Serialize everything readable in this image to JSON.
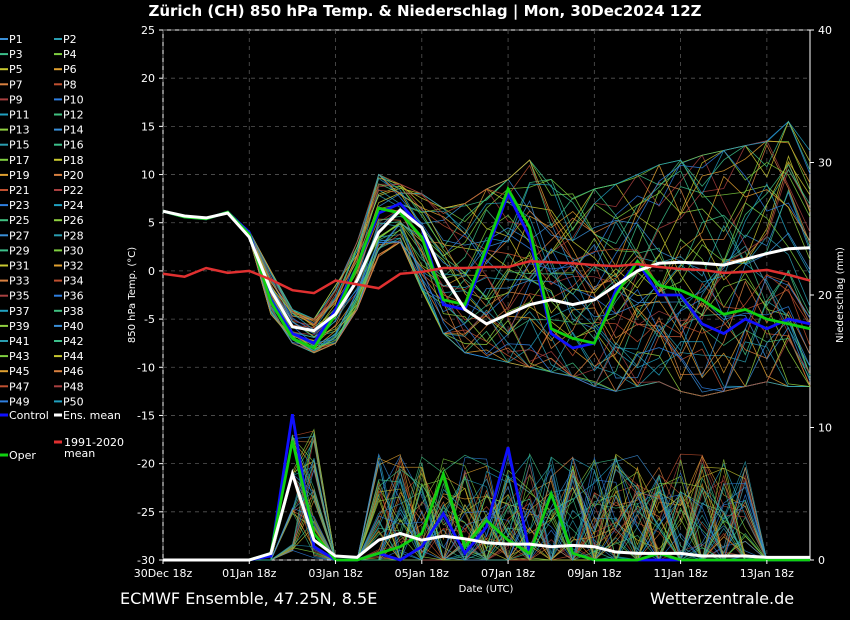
{
  "title": "Zürich  (CH)  850 hPa Temp. & Niederschlag | Mon, 30Dec2024 12Z",
  "footer": {
    "left": "ECMWF Ensemble, 47.25N, 8.5E",
    "right": "Wetterzentrale.de"
  },
  "colors": {
    "background": "#000000",
    "control": "#1010ff",
    "ens_mean": "#ffffff",
    "climate": "#e03030",
    "oper": "#10d010",
    "palette": [
      "#3a8fd8",
      "#2a9db0",
      "#3cbf8a",
      "#7fcf40",
      "#c8c830",
      "#e0a030",
      "#d88040",
      "#c05030",
      "#a84040",
      "#2f7fe0",
      "#20a0c0",
      "#40c080",
      "#90d040"
    ]
  },
  "chart_data": {
    "type": "line",
    "title": "Zürich  (CH)  850 hPa Temp. & Niederschlag | Mon, 30Dec2024 12Z",
    "xlabel": "Date (UTC)",
    "ylabel_left": "850 hPa Temp. (°C)",
    "ylabel_right": "Niederschlag (mm)",
    "ylim_left": [
      -30,
      25
    ],
    "ylim_right": [
      0,
      40
    ],
    "xlim_days": [
      0,
      15
    ],
    "yticks_left": [
      25,
      20,
      15,
      10,
      5,
      0,
      -5,
      -10,
      -15,
      -20,
      -25,
      -30
    ],
    "yticks_right": [
      40,
      30,
      20,
      10,
      0
    ],
    "xticks": [
      {
        "day": 0,
        "label": "30Dec 18z"
      },
      {
        "day": 2,
        "label": "01Jan 18z"
      },
      {
        "day": 4,
        "label": "03Jan 18z"
      },
      {
        "day": 6,
        "label": "05Jan 18z"
      },
      {
        "day": 8,
        "label": "07Jan 18z"
      },
      {
        "day": 10,
        "label": "09Jan 18z"
      },
      {
        "day": 12,
        "label": "11Jan 18z"
      },
      {
        "day": 14,
        "label": "13Jan 18z"
      }
    ],
    "grid": true,
    "legend_position": "left",
    "x_days": [
      0,
      0.5,
      1,
      1.5,
      2,
      2.5,
      3,
      3.5,
      4,
      4.5,
      5,
      5.5,
      6,
      6.5,
      7,
      7.5,
      8,
      8.5,
      9,
      9.5,
      10,
      10.5,
      11,
      11.5,
      12,
      12.5,
      13,
      13.5,
      14,
      14.5,
      15
    ],
    "series": [
      {
        "name": "Control",
        "color": "#1010ff",
        "temp": [
          6.2,
          5.6,
          5.4,
          6.1,
          4.0,
          -3.0,
          -6.5,
          -7.5,
          -4.0,
          0.5,
          6.0,
          7.0,
          4.5,
          -3.5,
          -4.0,
          2.0,
          8.0,
          3.5,
          -6.5,
          -8.0,
          -7.5,
          -2.0,
          1.0,
          -2.5,
          -2.5,
          -5.5,
          -6.5,
          -5.0,
          -6.0,
          -5.0,
          -5.5
        ],
        "precip": [
          0,
          0,
          0,
          0,
          0,
          0.3,
          11,
          1.0,
          0,
          0,
          0.5,
          0,
          1.0,
          3.5,
          0.5,
          2.5,
          8.5,
          0.5,
          5.0,
          0.5,
          0,
          0,
          0,
          0,
          0,
          0,
          0,
          0,
          0,
          0,
          0
        ]
      },
      {
        "name": "Oper",
        "color": "#10d010",
        "temp": [
          6.2,
          5.6,
          5.4,
          6.1,
          3.8,
          -3.2,
          -7.0,
          -8.0,
          -4.5,
          0.5,
          6.5,
          6.0,
          3.5,
          -3.0,
          -3.5,
          2.5,
          8.5,
          4.5,
          -6.0,
          -7.0,
          -7.5,
          -2.5,
          1.0,
          -1.5,
          -2.0,
          -3.0,
          -4.5,
          -4.0,
          -5.0,
          -5.5,
          -6.0
        ],
        "precip": [
          0,
          0,
          0,
          0,
          0,
          0.5,
          9.0,
          2.0,
          0,
          0,
          0.5,
          1.0,
          2.0,
          6.5,
          1.0,
          3.0,
          1.5,
          0.5,
          5.0,
          0.5,
          0,
          0,
          0,
          0.5,
          0,
          0,
          0,
          0,
          0,
          0,
          0
        ]
      },
      {
        "name": "Ens. mean",
        "color": "#ffffff",
        "temp": [
          6.2,
          5.7,
          5.5,
          6.0,
          3.5,
          -2.0,
          -5.8,
          -6.2,
          -4.5,
          -1.0,
          4.0,
          6.3,
          4.5,
          -0.5,
          -4.0,
          -5.5,
          -4.5,
          -3.5,
          -3.0,
          -3.5,
          -3.0,
          -1.5,
          0.0,
          0.8,
          0.9,
          0.8,
          0.6,
          1.2,
          1.8,
          2.3,
          2.4
        ],
        "precip": [
          0,
          0,
          0,
          0,
          0,
          0.5,
          6.5,
          1.5,
          0.3,
          0.2,
          1.5,
          2.0,
          1.5,
          1.8,
          1.6,
          1.3,
          1.2,
          1.2,
          1.0,
          1.1,
          1.0,
          0.6,
          0.5,
          0.5,
          0.5,
          0.3,
          0.3,
          0.3,
          0.2,
          0.2,
          0.2
        ]
      },
      {
        "name": "1991-2020 mean",
        "color": "#e03030",
        "temp": [
          -0.3,
          -0.6,
          0.3,
          -0.2,
          0.0,
          -0.9,
          -2.0,
          -2.3,
          -1.0,
          -1.4,
          -1.8,
          -0.3,
          -0.1,
          0.3,
          0.3,
          0.4,
          0.4,
          1.0,
          0.9,
          0.8,
          0.6,
          0.5,
          0.7,
          0.4,
          0.2,
          0.1,
          -0.2,
          -0.1,
          0.1,
          -0.4,
          -1.0
        ],
        "precip": []
      }
    ],
    "members": [
      "P1",
      "P2",
      "P3",
      "P4",
      "P5",
      "P6",
      "P7",
      "P8",
      "P9",
      "P10",
      "P11",
      "P12",
      "P13",
      "P14",
      "P15",
      "P16",
      "P17",
      "P18",
      "P19",
      "P20",
      "P21",
      "P22",
      "P23",
      "P24",
      "P25",
      "P26",
      "P27",
      "P28",
      "P29",
      "P30",
      "P31",
      "P32",
      "P33",
      "P34",
      "P35",
      "P36",
      "P37",
      "P38",
      "P39",
      "P40",
      "P41",
      "P42",
      "P43",
      "P44",
      "P45",
      "P46",
      "P47",
      "P48",
      "P49",
      "P50"
    ],
    "member_temp_envelope": {
      "note_min": [
        6.0,
        5.4,
        5.2,
        5.8,
        2.5,
        -4.5,
        -7.5,
        -8.5,
        -7.5,
        -4.0,
        1.5,
        3.0,
        -2.0,
        -6.5,
        -8.5,
        -9.0,
        -9.5,
        -10.0,
        -10.5,
        -11.0,
        -12.0,
        -12.5,
        -12.0,
        -11.5,
        -12.5,
        -13.0,
        -12.5,
        -12.0,
        -11.5,
        -12.0,
        -12.0
      ],
      "note_max": [
        6.5,
        5.9,
        5.7,
        6.3,
        5.0,
        0.0,
        -4.0,
        -5.0,
        -1.5,
        3.0,
        10.0,
        9.0,
        8.0,
        6.5,
        7.0,
        8.5,
        9.5,
        11.5,
        9.5,
        8.0,
        8.5,
        9.0,
        10.0,
        11.0,
        11.5,
        12.0,
        12.5,
        13.0,
        13.5,
        15.5,
        16.0
      ]
    }
  }
}
